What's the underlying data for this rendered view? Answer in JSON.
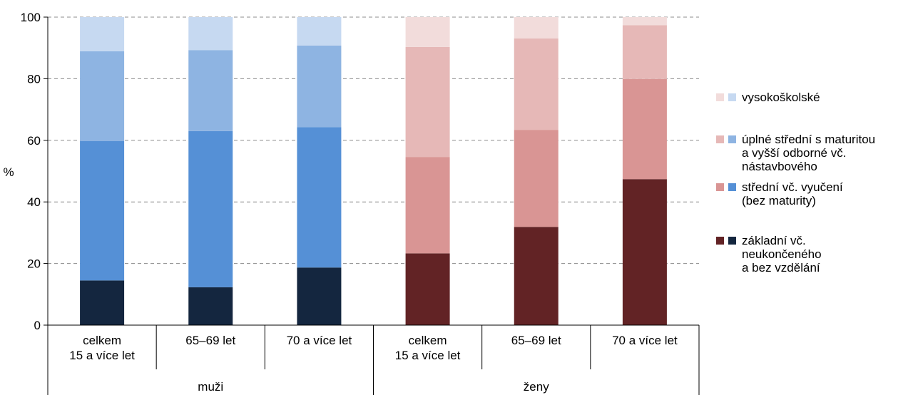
{
  "chart_data": {
    "type": "bar",
    "stacked": true,
    "ylabel": "%",
    "ylim": [
      0,
      100
    ],
    "yticks": [
      0,
      20,
      40,
      60,
      80,
      100
    ],
    "grid": true,
    "legend_position": "right",
    "groups": [
      {
        "label": "muži",
        "categories": [
          "celkem\n15 a více let",
          "65–69 let",
          "70 a více let"
        ]
      },
      {
        "label": "ženy",
        "categories": [
          "celkem\n15 a více let",
          "65–69 let",
          "70 a více let"
        ]
      }
    ],
    "categories": [
      "celkem 15 a více let (muži)",
      "65–69 let (muži)",
      "70 a více let (muži)",
      "celkem 15 a více let (ženy)",
      "65–69 let (ženy)",
      "70 a více let (ženy)"
    ],
    "series": [
      {
        "name": "základní vč. neukončeného a bez vzdělání",
        "colors": [
          "#14263f",
          "#622325"
        ],
        "values": [
          14.5,
          12.3,
          18.7,
          23.3,
          31.9,
          47.4
        ]
      },
      {
        "name": "střední vč. vyučení (bez maturity)",
        "colors": [
          "#5590d6",
          "#d99594"
        ],
        "values": [
          45.3,
          50.7,
          45.6,
          31.3,
          31.5,
          32.5
        ]
      },
      {
        "name": "úplné střední s maturitou a vyšší odborné vč. nástavbového",
        "colors": [
          "#8eb4e2",
          "#e6b8b7"
        ],
        "values": [
          29.1,
          26.3,
          26.5,
          35.7,
          29.7,
          17.5
        ]
      },
      {
        "name": "vysokoškolské",
        "colors": [
          "#c6d9f1",
          "#f2dcdb"
        ],
        "values": [
          11.1,
          10.7,
          9.2,
          9.7,
          6.9,
          2.6
        ]
      }
    ]
  },
  "legend": [
    {
      "label": "vysokoškolské",
      "colors": [
        "#f2dcdb",
        "#c6d9f1"
      ]
    },
    {
      "label": "úplné střední s maturitou\na vyšší odborné vč.\nnástavbového",
      "colors": [
        "#e6b8b7",
        "#8eb4e2"
      ]
    },
    {
      "label": "střední vč. vyučení\n(bez maturity)",
      "colors": [
        "#d99594",
        "#5590d6"
      ]
    },
    {
      "label": "základní vč.\nneukončeného\na bez vzdělání",
      "colors": [
        "#622325",
        "#14263f"
      ]
    }
  ]
}
